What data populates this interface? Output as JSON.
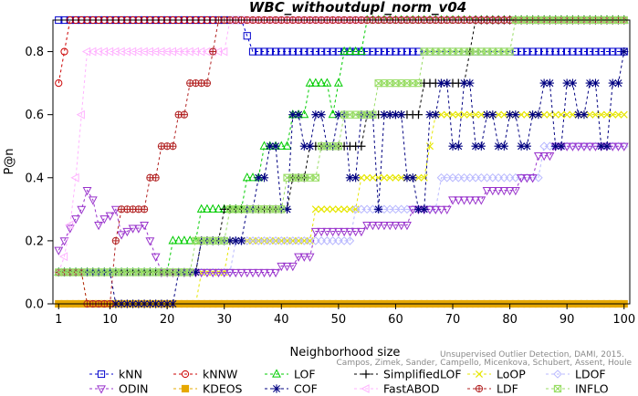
{
  "chart_data": {
    "type": "line",
    "title": "WBC_withoutdupl_norm_v04",
    "xlabel": "Neighborhood size",
    "ylabel": "P@n",
    "xlim": [
      0,
      101
    ],
    "ylim": [
      0,
      0.9
    ],
    "x_ticks": [
      1,
      10,
      20,
      30,
      40,
      50,
      60,
      70,
      80,
      90,
      100
    ],
    "y_ticks": [
      0.0,
      0.2,
      0.4,
      0.6,
      0.8
    ],
    "y_tick_labels": [
      "0.0",
      "0.2",
      "0.4",
      "0.6",
      "0.8"
    ],
    "grid": false,
    "legend_position": "bottom",
    "note_lines": [
      "Campos, Zimek, Sander, Campello, Micenkova, Schubert, Assent, Houle",
      "Unsupervised Outlier Detection, DAMI, 2015."
    ],
    "series": [
      {
        "name": "kNN",
        "color": "#0000cc",
        "marker": "square",
        "points": [
          [
            1,
            0.9
          ],
          [
            33,
            0.9
          ],
          [
            34,
            0.85
          ],
          [
            35,
            0.8
          ],
          [
            100,
            0.8
          ]
        ]
      },
      {
        "name": "kNNW",
        "color": "#cc0000",
        "marker": "circle",
        "points": [
          [
            1,
            0.7
          ],
          [
            2,
            0.8
          ],
          [
            3,
            0.9
          ],
          [
            100,
            0.9
          ]
        ]
      },
      {
        "name": "LOF",
        "color": "#00cc00",
        "marker": "triangle-up",
        "points": [
          [
            1,
            0.1
          ],
          [
            20,
            0.1
          ],
          [
            21,
            0.2
          ],
          [
            25,
            0.2
          ],
          [
            26,
            0.3
          ],
          [
            33,
            0.3
          ],
          [
            34,
            0.4
          ],
          [
            36,
            0.4
          ],
          [
            37,
            0.5
          ],
          [
            41,
            0.5
          ],
          [
            42,
            0.6
          ],
          [
            44,
            0.6
          ],
          [
            45,
            0.7
          ],
          [
            48,
            0.7
          ],
          [
            49,
            0.6
          ],
          [
            50,
            0.7
          ],
          [
            51,
            0.8
          ],
          [
            54,
            0.8
          ],
          [
            55,
            0.9
          ],
          [
            100,
            0.9
          ]
        ]
      },
      {
        "name": "SimplifiedLOF",
        "color": "#000000",
        "marker": "plus",
        "points": [
          [
            1,
            0.1
          ],
          [
            25,
            0.1
          ],
          [
            26,
            0.2
          ],
          [
            29,
            0.2
          ],
          [
            30,
            0.3
          ],
          [
            41,
            0.3
          ],
          [
            42,
            0.4
          ],
          [
            44,
            0.4
          ],
          [
            45,
            0.5
          ],
          [
            54,
            0.5
          ],
          [
            55,
            0.6
          ],
          [
            64,
            0.6
          ],
          [
            65,
            0.7
          ],
          [
            72,
            0.7
          ],
          [
            73,
            0.8
          ],
          [
            74,
            0.9
          ],
          [
            100,
            0.9
          ]
        ]
      },
      {
        "name": "LoOP",
        "color": "#e6e600",
        "marker": "x",
        "points": [
          [
            1,
            0.1
          ],
          [
            5,
            0.1
          ],
          [
            6,
            0.0
          ],
          [
            25,
            0.0
          ],
          [
            26,
            0.1
          ],
          [
            30,
            0.1
          ],
          [
            31,
            0.2
          ],
          [
            45,
            0.2
          ],
          [
            46,
            0.3
          ],
          [
            53,
            0.3
          ],
          [
            54,
            0.4
          ],
          [
            65,
            0.4
          ],
          [
            66,
            0.5
          ],
          [
            67,
            0.6
          ],
          [
            100,
            0.6
          ]
        ]
      },
      {
        "name": "LDOF",
        "color": "#b9b9ff",
        "marker": "diamond",
        "points": [
          [
            1,
            0.1
          ],
          [
            31,
            0.1
          ],
          [
            32,
            0.2
          ],
          [
            45,
            0.2
          ],
          [
            50,
            0.2
          ],
          [
            53,
            0.3
          ],
          [
            65,
            0.3
          ],
          [
            68,
            0.4
          ],
          [
            82,
            0.4
          ],
          [
            86,
            0.5
          ],
          [
            100,
            0.5
          ]
        ]
      },
      {
        "name": "ODIN",
        "color": "#9933cc",
        "marker": "triangle-down",
        "points": [
          [
            1,
            0.17
          ],
          [
            2,
            0.2
          ],
          [
            3,
            0.24
          ],
          [
            4,
            0.27
          ],
          [
            5,
            0.3
          ],
          [
            6,
            0.36
          ],
          [
            7,
            0.33
          ],
          [
            8,
            0.25
          ],
          [
            9,
            0.27
          ],
          [
            10,
            0.28
          ],
          [
            11,
            0.3
          ],
          [
            12,
            0.22
          ],
          [
            13,
            0.23
          ],
          [
            14,
            0.24
          ],
          [
            16,
            0.25
          ],
          [
            17,
            0.2
          ],
          [
            18,
            0.15
          ],
          [
            19,
            0.1
          ],
          [
            38,
            0.1
          ],
          [
            40,
            0.12
          ],
          [
            43,
            0.15
          ],
          [
            46,
            0.23
          ],
          [
            50,
            0.23
          ],
          [
            55,
            0.25
          ],
          [
            63,
            0.3
          ],
          [
            70,
            0.33
          ],
          [
            76,
            0.36
          ],
          [
            82,
            0.4
          ],
          [
            85,
            0.47
          ],
          [
            88,
            0.5
          ],
          [
            100,
            0.5
          ]
        ]
      },
      {
        "name": "KDEOS",
        "color": "#e6a800",
        "marker": "square-filled",
        "points": [
          [
            1,
            0.0
          ],
          [
            100,
            0.0
          ]
        ]
      },
      {
        "name": "COF",
        "color": "#000080",
        "marker": "asterisk",
        "points": [
          [
            1,
            0.1
          ],
          [
            10,
            0.1
          ],
          [
            11,
            0.0
          ],
          [
            18,
            0.0
          ],
          [
            22,
            0.1
          ],
          [
            26,
            0.2
          ],
          [
            30,
            0.2
          ],
          [
            34,
            0.3
          ],
          [
            36,
            0.4
          ],
          [
            38,
            0.5
          ],
          [
            40,
            0.3
          ],
          [
            42,
            0.6
          ],
          [
            44,
            0.5
          ],
          [
            46,
            0.6
          ],
          [
            48,
            0.5
          ],
          [
            50,
            0.6
          ],
          [
            52,
            0.4
          ],
          [
            54,
            0.6
          ],
          [
            57,
            0.3
          ],
          [
            58,
            0.6
          ],
          [
            62,
            0.4
          ],
          [
            64,
            0.3
          ],
          [
            66,
            0.6
          ],
          [
            68,
            0.7
          ],
          [
            70,
            0.5
          ],
          [
            72,
            0.7
          ],
          [
            74,
            0.5
          ],
          [
            76,
            0.6
          ],
          [
            78,
            0.5
          ],
          [
            80,
            0.6
          ],
          [
            82,
            0.5
          ],
          [
            84,
            0.6
          ],
          [
            86,
            0.7
          ],
          [
            88,
            0.5
          ],
          [
            90,
            0.7
          ],
          [
            92,
            0.6
          ],
          [
            94,
            0.7
          ],
          [
            96,
            0.5
          ],
          [
            98,
            0.7
          ],
          [
            100,
            0.8
          ]
        ]
      },
      {
        "name": "FastABOD",
        "color": "#ffb3ff",
        "marker": "triangle-left",
        "points": [
          [
            1,
            0.1
          ],
          [
            2,
            0.15
          ],
          [
            3,
            0.25
          ],
          [
            4,
            0.4
          ],
          [
            5,
            0.6
          ],
          [
            6,
            0.8
          ],
          [
            30,
            0.8
          ],
          [
            31,
            0.9
          ],
          [
            100,
            0.9
          ]
        ]
      },
      {
        "name": "LDF",
        "color": "#b22222",
        "marker": "circle-cross",
        "points": [
          [
            1,
            0.1
          ],
          [
            5,
            0.1
          ],
          [
            6,
            0.0
          ],
          [
            10,
            0.0
          ],
          [
            11,
            0.2
          ],
          [
            12,
            0.3
          ],
          [
            15,
            0.3
          ],
          [
            17,
            0.4
          ],
          [
            19,
            0.5
          ],
          [
            22,
            0.6
          ],
          [
            24,
            0.7
          ],
          [
            27,
            0.7
          ],
          [
            28,
            0.8
          ],
          [
            29,
            0.9
          ],
          [
            100,
            0.9
          ]
        ]
      },
      {
        "name": "INFLO",
        "color": "#99dd66",
        "marker": "square-x",
        "points": [
          [
            1,
            0.1
          ],
          [
            24,
            0.1
          ],
          [
            25,
            0.2
          ],
          [
            30,
            0.2
          ],
          [
            31,
            0.3
          ],
          [
            40,
            0.3
          ],
          [
            41,
            0.4
          ],
          [
            46,
            0.4
          ],
          [
            47,
            0.5
          ],
          [
            50,
            0.5
          ],
          [
            51,
            0.6
          ],
          [
            56,
            0.6
          ],
          [
            57,
            0.7
          ],
          [
            64,
            0.7
          ],
          [
            65,
            0.8
          ],
          [
            80,
            0.8
          ],
          [
            81,
            0.9
          ],
          [
            100,
            0.9
          ]
        ]
      }
    ]
  }
}
